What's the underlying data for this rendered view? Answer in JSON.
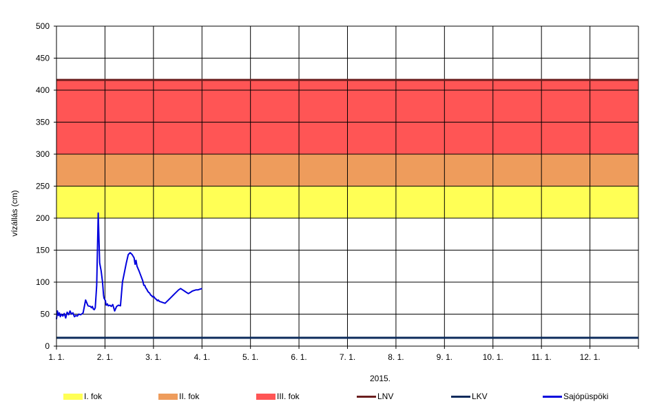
{
  "chart_data": {
    "type": "line",
    "title": "",
    "xlabel": "2015.",
    "ylabel": "vízállás  (cm)",
    "ylim": [
      0,
      500
    ],
    "yticks": [
      0,
      50,
      100,
      150,
      200,
      250,
      300,
      350,
      400,
      450,
      500
    ],
    "xlim": [
      0,
      12
    ],
    "xticks": [
      "1. 1.",
      "2. 1.",
      "3. 1.",
      "4. 1.",
      "5. 1.",
      "6. 1.",
      "7. 1.",
      "8. 1.",
      "9. 1.",
      "10. 1.",
      "11. 1.",
      "12. 1."
    ],
    "grid": true,
    "legend_position": "bottom",
    "bands": [
      {
        "name": "I. fok",
        "from": 200,
        "to": 250,
        "color": "#FFFF55"
      },
      {
        "name": "II. fok",
        "from": 250,
        "to": 300,
        "color": "#EE9C5C"
      },
      {
        "name": "III. fok",
        "from": 300,
        "to": 416,
        "color": "#FF5555"
      }
    ],
    "reference_lines": [
      {
        "name": "LNV",
        "value": 416,
        "color": "#6B1E1E"
      },
      {
        "name": "LKV",
        "value": 13,
        "color": "#0B2A5B"
      }
    ],
    "series": [
      {
        "name": "Sajópüspöki",
        "color": "#0000DD",
        "x": [
          0.0,
          0.02,
          0.04,
          0.06,
          0.08,
          0.1,
          0.13,
          0.16,
          0.19,
          0.22,
          0.25,
          0.28,
          0.31,
          0.34,
          0.37,
          0.4,
          0.43,
          0.46,
          0.5,
          0.55,
          0.6,
          0.65,
          0.7,
          0.72,
          0.74,
          0.76,
          0.78,
          0.8,
          0.83,
          0.86,
          0.89,
          0.92,
          0.95,
          0.97,
          0.98,
          0.99,
          1.0,
          1.01,
          1.02,
          1.03,
          1.05,
          1.07,
          1.1,
          1.13,
          1.16,
          1.2,
          1.24,
          1.28,
          1.32,
          1.36,
          1.4,
          1.44,
          1.48,
          1.52,
          1.56,
          1.6,
          1.62,
          1.64,
          1.66,
          1.7,
          1.74,
          1.78,
          1.8,
          1.82,
          1.84,
          1.86,
          1.88,
          1.9,
          1.92,
          1.94,
          1.96,
          1.98,
          2.0,
          2.02,
          2.04,
          2.06,
          2.08,
          2.1,
          2.12,
          2.16,
          2.2,
          2.24,
          2.28,
          2.32,
          2.36,
          2.4,
          2.44,
          2.48,
          2.52,
          2.56,
          2.6,
          2.64,
          2.68,
          2.72,
          2.76,
          2.8,
          2.84,
          2.88,
          2.92,
          2.96,
          3.0
        ],
        "values": [
          42,
          55,
          48,
          52,
          46,
          50,
          47,
          51,
          44,
          53,
          49,
          55,
          50,
          52,
          46,
          48,
          47,
          50,
          49,
          52,
          72,
          63,
          62,
          60,
          62,
          58,
          57,
          60,
          95,
          208,
          130,
          118,
          100,
          80,
          75,
          74,
          72,
          71,
          65,
          64,
          66,
          63,
          64,
          62,
          65,
          55,
          62,
          64,
          63,
          100,
          115,
          130,
          143,
          146,
          143,
          138,
          128,
          134,
          125,
          118,
          110,
          102,
          95,
          95,
          91,
          89,
          86,
          84,
          83,
          80,
          79,
          77,
          78,
          76,
          74,
          73,
          71,
          72,
          70,
          69,
          68,
          67,
          70,
          73,
          76,
          79,
          82,
          85,
          88,
          90,
          88,
          86,
          84,
          82,
          84,
          86,
          87,
          88,
          88,
          89,
          90
        ]
      }
    ]
  }
}
